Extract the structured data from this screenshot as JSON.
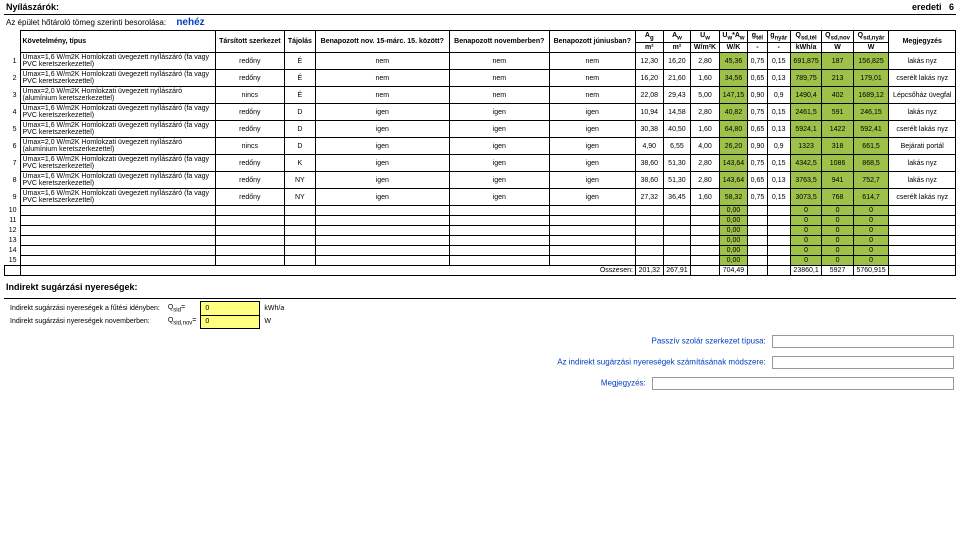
{
  "header": {
    "left": "Nyílászárók:",
    "right_text": "eredeti",
    "page": "6"
  },
  "subheader": {
    "label": "Az épület hőtároló tömeg szerinti besorolása:",
    "value": "nehéz"
  },
  "columns": {
    "req": "Követelmény, típus",
    "tarsitott": "Társított szerkezet",
    "tajolas": "Tájolás",
    "benap1": "Benapozott nov. 15-márc. 15. között?",
    "benap2": "Benapozott novemberben?",
    "benap3": "Benapozott júniusban?",
    "Ag": "A_g",
    "Aw": "A_w",
    "Uw": "U_w",
    "UwAw": "U_w*A_w",
    "gtel": "g_tél",
    "gnyar": "g_nyár",
    "Qsdtel": "Q_sd,tél",
    "Qsdnov": "Q_sd,nov",
    "Qsdnyar": "Q_sd,nyár",
    "megj": "Megjegyzés",
    "u_Ag": "m²",
    "u_Aw": "m²",
    "u_Uw": "W/m²K",
    "u_UwAw": "W/K",
    "u_gtel": "-",
    "u_gnyar": "-",
    "u_Qsdtel": "kWh/a",
    "u_Qsdnov": "W",
    "u_Qsdnyar": "W"
  },
  "rows": [
    {
      "n": "1",
      "req": "Umax=1,6 W/m2K     Homlokzati üvegezett nyílászáró (fa vagy PVC keretszerkezettel)",
      "tars": "redőny",
      "taj": "É",
      "b1": "nem",
      "b2": "nem",
      "b3": "nem",
      "Ag": "12,30",
      "Aw": "16,20",
      "Uw": "2,80",
      "UwAw": "45,36",
      "gtel": "0,75",
      "gnyar": "0,15",
      "Qtel": "691,875",
      "Qnov": "187",
      "Qnyar": "156,825",
      "megj": "lakás nyz"
    },
    {
      "n": "2",
      "req": "Umax=1,6 W/m2K     Homlokzati üvegezett nyílászáró (fa vagy PVC keretszerkezettel)",
      "tars": "redőny",
      "taj": "É",
      "b1": "nem",
      "b2": "nem",
      "b3": "nem",
      "Ag": "16,20",
      "Aw": "21,60",
      "Uw": "1,60",
      "UwAw": "34,56",
      "gtel": "0,65",
      "gnyar": "0,13",
      "Qtel": "789,75",
      "Qnov": "213",
      "Qnyar": "179,01",
      "megj": "cserélt lakás nyz"
    },
    {
      "n": "3",
      "req": "Umax=2,0 W/m2K     Homlokzati üvegezett nyílászáró (alumínium keretszerkezettel)",
      "tars": "nincs",
      "taj": "É",
      "b1": "nem",
      "b2": "nem",
      "b3": "nem",
      "Ag": "22,08",
      "Aw": "29,43",
      "Uw": "5,00",
      "UwAw": "147,15",
      "gtel": "0,90",
      "gnyar": "0,9",
      "Qtel": "1490,4",
      "Qnov": "402",
      "Qnyar": "1689,12",
      "megj": "Lépcsőház üvegfal"
    },
    {
      "n": "4",
      "req": "Umax=1,6 W/m2K     Homlokzati üvegezett nyílászáró (fa vagy PVC keretszerkezettel)",
      "tars": "redőny",
      "taj": "D",
      "b1": "igen",
      "b2": "igen",
      "b3": "igen",
      "Ag": "10,94",
      "Aw": "14,58",
      "Uw": "2,80",
      "UwAw": "40,82",
      "gtel": "0,75",
      "gnyar": "0,15",
      "Qtel": "2461,5",
      "Qnov": "591",
      "Qnyar": "246,15",
      "megj": "lakás nyz"
    },
    {
      "n": "5",
      "req": "Umax=1,6 W/m2K     Homlokzati üvegezett nyílászáró (fa vagy PVC keretszerkezettel)",
      "tars": "redőny",
      "taj": "D",
      "b1": "igen",
      "b2": "igen",
      "b3": "igen",
      "Ag": "30,38",
      "Aw": "40,50",
      "Uw": "1,60",
      "UwAw": "64,80",
      "gtel": "0,65",
      "gnyar": "0,13",
      "Qtel": "5924,1",
      "Qnov": "1422",
      "Qnyar": "592,41",
      "megj": "cserélt lakás nyz"
    },
    {
      "n": "6",
      "req": "Umax=2,0 W/m2K     Homlokzati üvegezett nyílászáró (alumínium keretszerkezettel)",
      "tars": "nincs",
      "taj": "D",
      "b1": "igen",
      "b2": "igen",
      "b3": "igen",
      "Ag": "4,90",
      "Aw": "6,55",
      "Uw": "4,00",
      "UwAw": "26,20",
      "gtel": "0,90",
      "gnyar": "0,9",
      "Qtel": "1323",
      "Qnov": "318",
      "Qnyar": "661,5",
      "megj": "Bejárati portál"
    },
    {
      "n": "7",
      "req": "Umax=1,6 W/m2K     Homlokzati üvegezett nyílászáró (fa vagy PVC keretszerkezettel)",
      "tars": "redőny",
      "taj": "K",
      "b1": "igen",
      "b2": "igen",
      "b3": "igen",
      "Ag": "38,60",
      "Aw": "51,30",
      "Uw": "2,80",
      "UwAw": "143,64",
      "gtel": "0,75",
      "gnyar": "0,15",
      "Qtel": "4342,5",
      "Qnov": "1086",
      "Qnyar": "868,5",
      "megj": "lakás nyz"
    },
    {
      "n": "8",
      "req": "Umax=1,6 W/m2K     Homlokzati üvegezett nyílászáró (fa vagy PVC keretszerkezettel)",
      "tars": "redőny",
      "taj": "NY",
      "b1": "igen",
      "b2": "igen",
      "b3": "igen",
      "Ag": "38,60",
      "Aw": "51,30",
      "Uw": "2,80",
      "UwAw": "143,64",
      "gtel": "0,65",
      "gnyar": "0,13",
      "Qtel": "3763,5",
      "Qnov": "941",
      "Qnyar": "752,7",
      "megj": "lakás nyz"
    },
    {
      "n": "9",
      "req": "Umax=1,6 W/m2K     Homlokzati üvegezett nyílászáró (fa vagy PVC keretszerkezettel)",
      "tars": "redőny",
      "taj": "NY",
      "b1": "igen",
      "b2": "igen",
      "b3": "igen",
      "Ag": "27,32",
      "Aw": "36,45",
      "Uw": "1,60",
      "UwAw": "58,32",
      "gtel": "0,75",
      "gnyar": "0,15",
      "Qtel": "3073,5",
      "Qnov": "768",
      "Qnyar": "614,7",
      "megj": "cserélt lakás nyz"
    }
  ],
  "empty_rows": [
    {
      "n": "10",
      "UwAw": "0,00",
      "Qtel": "0",
      "Qnov": "0",
      "Qnyar": "0"
    },
    {
      "n": "11",
      "UwAw": "0,00",
      "Qtel": "0",
      "Qnov": "0",
      "Qnyar": "0"
    },
    {
      "n": "12",
      "UwAw": "0,00",
      "Qtel": "0",
      "Qnov": "0",
      "Qnyar": "0"
    },
    {
      "n": "13",
      "UwAw": "0,00",
      "Qtel": "0",
      "Qnov": "0",
      "Qnyar": "0"
    },
    {
      "n": "14",
      "UwAw": "0,00",
      "Qtel": "0",
      "Qnov": "0",
      "Qnyar": "0"
    },
    {
      "n": "15",
      "UwAw": "0,00",
      "Qtel": "0",
      "Qnov": "0",
      "Qnyar": "0"
    }
  ],
  "sum": {
    "label": "Összesen:",
    "Ag": "201,32",
    "Aw": "267,91",
    "UwAw": "704,49",
    "Qtel": "23860,1",
    "Qnov": "5927",
    "Qnyar": "5760,915"
  },
  "indirekt": {
    "title": "Indirekt sugárzási nyereségek:",
    "r1_label": "Indirekt sugárzási nyereségek a fűtési idényben:",
    "r1_sym": "Q_sid=",
    "r1_val": "0",
    "r1_unit": "kWh/a",
    "r2_label": "Indirekt sugárzási nyereségek novemberben:",
    "r2_sym": "Q_sid,nov=",
    "r2_val": "0",
    "r2_unit": "W",
    "pasziv": "Passzív szolár szerkezet típusa:",
    "modszer": "Az indirekt sugárzási nyereségek számításának módszere:",
    "megj": "Megjegyzés:"
  },
  "style": {
    "green_bg": "#9ec14a",
    "yellow_bg": "#ffff80"
  }
}
